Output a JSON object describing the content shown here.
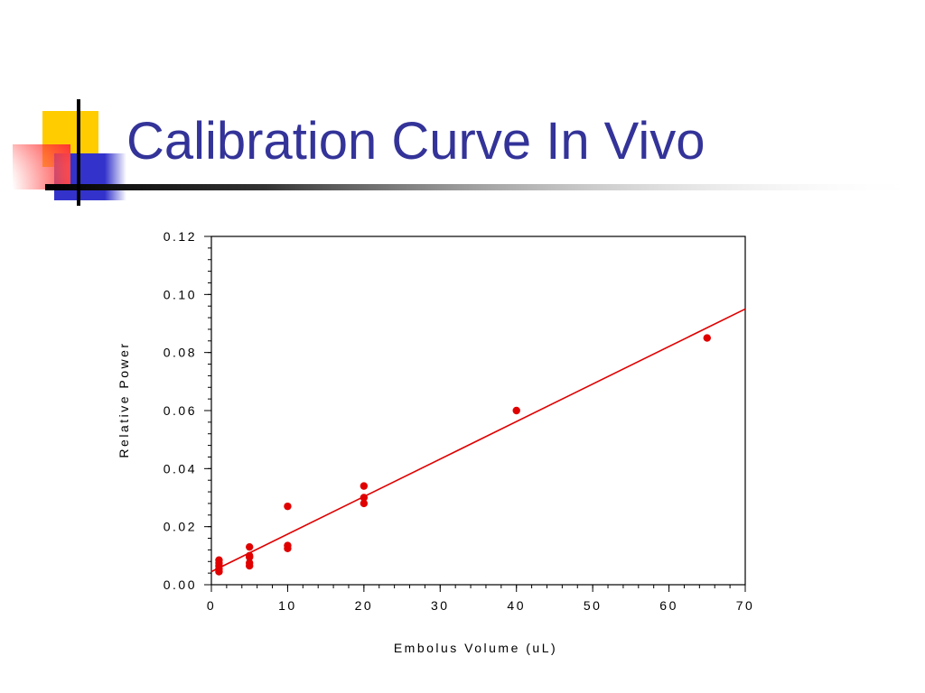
{
  "slide": {
    "title": "Calibration Curve In Vivo"
  },
  "colors": {
    "title": "#333399",
    "points": "#e00000",
    "fit_line": "#e00000",
    "deco_yellow": "#ffcc00",
    "deco_blue": "#3333cc",
    "deco_red": "#ff3333"
  },
  "chart_data": {
    "type": "scatter",
    "title": "",
    "xlabel": "Embolus Volume (uL)",
    "ylabel": "Relative Power",
    "xlim": [
      0,
      70
    ],
    "ylim": [
      0,
      0.12
    ],
    "x_ticks": [
      "0",
      "10",
      "20",
      "30",
      "40",
      "50",
      "60",
      "70"
    ],
    "y_ticks": [
      "0.00",
      "0.02",
      "0.04",
      "0.06",
      "0.08",
      "0.10",
      "0.12"
    ],
    "x_minor_step": 2,
    "y_minor_step": 0.004,
    "grid": false,
    "legend": "none",
    "points": [
      {
        "x": 1,
        "y": 0.0045
      },
      {
        "x": 1,
        "y": 0.0055
      },
      {
        "x": 1,
        "y": 0.0065
      },
      {
        "x": 1,
        "y": 0.0075
      },
      {
        "x": 1,
        "y": 0.0085
      },
      {
        "x": 5,
        "y": 0.0065
      },
      {
        "x": 5,
        "y": 0.0075
      },
      {
        "x": 5,
        "y": 0.0095
      },
      {
        "x": 5,
        "y": 0.01
      },
      {
        "x": 5,
        "y": 0.013
      },
      {
        "x": 10,
        "y": 0.0125
      },
      {
        "x": 10,
        "y": 0.0135
      },
      {
        "x": 10,
        "y": 0.027
      },
      {
        "x": 20,
        "y": 0.028
      },
      {
        "x": 20,
        "y": 0.03
      },
      {
        "x": 20,
        "y": 0.034
      },
      {
        "x": 40,
        "y": 0.06
      },
      {
        "x": 65,
        "y": 0.085
      }
    ],
    "fit_line": [
      {
        "x": 0,
        "y": 0.0045
      },
      {
        "x": 70,
        "y": 0.095
      }
    ]
  }
}
